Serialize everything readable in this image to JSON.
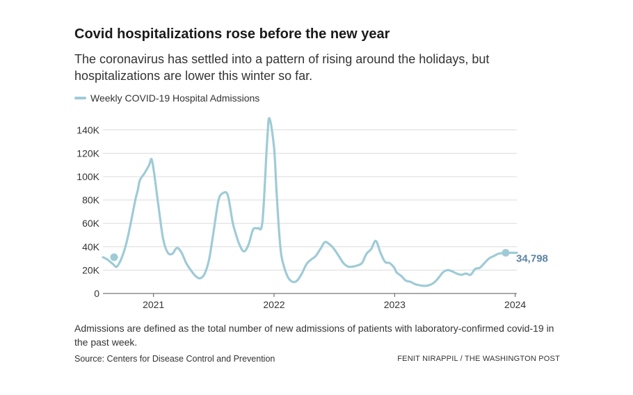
{
  "header": {
    "title": "Covid hospitalizations rose before the new year",
    "subtitle": "The coronavirus has settled into a pattern of rising around the holidays, but hospitalizations are lower this winter so far."
  },
  "footer": {
    "note": "Admissions are defined as the total number of new admissions of patients with laboratory-confirmed covid-19 in the past week.",
    "source": "Source: Centers for Disease Control and Prevention",
    "credit": "FENIT NIRAPPIL / THE WASHINGTON POST"
  },
  "colors": {
    "line": "#9ecbd6",
    "end_label": "#5b84a3",
    "grid": "#dcdcdc",
    "axis_text": "#333333"
  },
  "chart_data": {
    "type": "line",
    "title": "Covid hospitalizations rose before the new year",
    "subtitle": "The coronavirus has settled into a pattern of rising around the holidays, but hospitalizations are lower this winter so far.",
    "xlabel": "",
    "ylabel": "",
    "y_ticks": [
      0,
      20000,
      40000,
      60000,
      80000,
      100000,
      120000,
      140000
    ],
    "y_tick_labels": [
      "0",
      "20K",
      "40K",
      "60K",
      "80K",
      "100K",
      "120K",
      "140K"
    ],
    "ylim": [
      0,
      150000
    ],
    "x_ticks": [
      "2021-01-01",
      "2022-01-01",
      "2023-01-01",
      "2024-01-01"
    ],
    "x_tick_labels": [
      "2021",
      "2022",
      "2023",
      "2024"
    ],
    "xlim": [
      "2020-08-01",
      "2024-01-06"
    ],
    "grid": true,
    "legend_position": "top-left",
    "end_label": "34,798",
    "series": [
      {
        "name": "Weekly COVID-19 Hospital Admissions",
        "x": [
          "2020-08-01",
          "2020-08-15",
          "2020-09-01",
          "2020-09-12",
          "2020-09-26",
          "2020-10-10",
          "2020-10-24",
          "2020-11-07",
          "2020-11-14",
          "2020-11-21",
          "2020-12-05",
          "2020-12-19",
          "2020-12-26",
          "2021-01-02",
          "2021-01-09",
          "2021-01-16",
          "2021-01-30",
          "2021-02-13",
          "2021-02-27",
          "2021-03-13",
          "2021-03-27",
          "2021-04-10",
          "2021-04-24",
          "2021-05-08",
          "2021-05-22",
          "2021-06-05",
          "2021-06-19",
          "2021-07-03",
          "2021-07-17",
          "2021-07-31",
          "2021-08-14",
          "2021-08-28",
          "2021-09-04",
          "2021-09-18",
          "2021-10-02",
          "2021-10-16",
          "2021-10-30",
          "2021-11-13",
          "2021-11-27",
          "2021-12-11",
          "2021-12-18",
          "2022-01-01",
          "2022-01-08",
          "2022-01-15",
          "2022-01-22",
          "2022-01-29",
          "2022-02-12",
          "2022-02-26",
          "2022-03-12",
          "2022-03-26",
          "2022-04-09",
          "2022-04-23",
          "2022-05-07",
          "2022-05-21",
          "2022-06-04",
          "2022-06-18",
          "2022-07-02",
          "2022-07-16",
          "2022-07-30",
          "2022-08-13",
          "2022-08-27",
          "2022-09-10",
          "2022-09-24",
          "2022-10-08",
          "2022-10-22",
          "2022-11-05",
          "2022-11-19",
          "2022-12-03",
          "2022-12-17",
          "2022-12-31",
          "2023-01-07",
          "2023-01-21",
          "2023-02-04",
          "2023-02-18",
          "2023-03-04",
          "2023-03-18",
          "2023-04-01",
          "2023-04-15",
          "2023-04-29",
          "2023-05-13",
          "2023-05-27",
          "2023-06-10",
          "2023-06-24",
          "2023-07-08",
          "2023-07-22",
          "2023-08-05",
          "2023-08-19",
          "2023-09-02",
          "2023-09-16",
          "2023-09-30",
          "2023-10-14",
          "2023-10-28",
          "2023-11-11",
          "2023-11-25",
          "2023-12-09",
          "2023-12-23",
          "2024-01-06"
        ],
        "y": [
          31000,
          29000,
          25000,
          23000,
          30000,
          42000,
          60000,
          80000,
          88000,
          97000,
          103000,
          110000,
          115000,
          105000,
          90000,
          75000,
          47000,
          35000,
          34000,
          39000,
          35000,
          26000,
          20000,
          15000,
          13000,
          17000,
          30000,
          55000,
          80000,
          86000,
          84000,
          62000,
          54000,
          42000,
          36000,
          42000,
          55000,
          56000,
          62000,
          130000,
          150000,
          125000,
          90000,
          58000,
          35000,
          25000,
          14000,
          10000,
          11000,
          17000,
          25000,
          29000,
          32000,
          38000,
          44000,
          42000,
          38000,
          32000,
          26000,
          23000,
          23000,
          24000,
          26000,
          34000,
          38000,
          45000,
          35000,
          27000,
          26000,
          22000,
          18000,
          15000,
          11000,
          10000,
          8000,
          7000,
          6500,
          7000,
          9000,
          13000,
          18000,
          20000,
          19000,
          17000,
          16000,
          17000,
          16000,
          21000,
          22000,
          26000,
          30000,
          32000,
          34000,
          34500,
          34798,
          34798,
          34798
        ]
      }
    ]
  }
}
